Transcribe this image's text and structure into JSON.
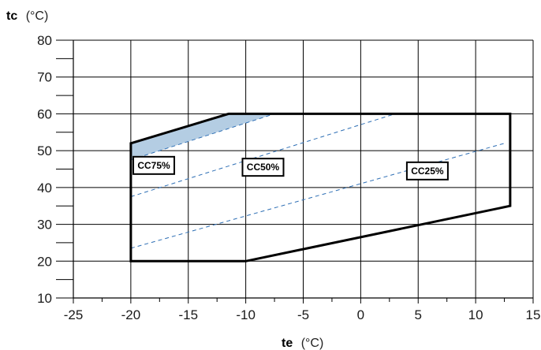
{
  "chart_data": {
    "type": "line",
    "x_axis": {
      "var": "te",
      "unit": "(°C)",
      "range": [
        -25,
        15
      ],
      "ticks": [
        -25,
        -20,
        -15,
        -10,
        -5,
        0,
        5,
        10,
        15
      ],
      "tick_labels": [
        "-25",
        "-20",
        "-15",
        "-10",
        "-5",
        "0",
        "5",
        "10",
        "15"
      ],
      "minor_ticks": [
        -22.5,
        -17.5,
        -12.5,
        -7.5,
        -2.5,
        2.5,
        7.5,
        12.5
      ]
    },
    "y_axis": {
      "var": "tc",
      "unit": "(°C)",
      "range": [
        10,
        80
      ],
      "ticks": [
        10,
        20,
        30,
        40,
        50,
        60,
        70,
        80
      ],
      "tick_labels": [
        "10",
        "20",
        "30",
        "40",
        "50",
        "60",
        "70",
        "80"
      ],
      "minor_ticks": [
        15,
        25,
        35,
        45,
        55,
        65,
        75
      ]
    },
    "grid": true,
    "envelope": {
      "points": [
        [
          -20,
          52
        ],
        [
          -11.5,
          60
        ],
        [
          13,
          60
        ],
        [
          13,
          35
        ],
        [
          -10,
          20
        ],
        [
          -20,
          20
        ]
      ]
    },
    "shaded_region": {
      "color": "#b4cde3",
      "points": [
        [
          -20,
          52
        ],
        [
          -11.5,
          60
        ],
        [
          -7.5,
          60
        ],
        [
          -20,
          47.5
        ]
      ]
    },
    "capacity_lines": [
      {
        "points": [
          [
            -20,
            47.5
          ],
          [
            -7.5,
            60
          ]
        ]
      },
      {
        "points": [
          [
            -20,
            37.5
          ],
          [
            3,
            60
          ]
        ]
      },
      {
        "points": [
          [
            -20,
            23.5
          ],
          [
            12.5,
            52
          ]
        ]
      }
    ],
    "annotations": [
      {
        "text": "CC75%",
        "x": -18,
        "y": 46
      },
      {
        "text": "CC50%",
        "x": -8.5,
        "y": 45.5
      },
      {
        "text": "CC25%",
        "x": 5.8,
        "y": 44.5
      }
    ],
    "colors": {
      "envelope": "#000000",
      "grid": "#000000",
      "capacity_line": "#2e6fb5",
      "shaded": "#b4cde3"
    }
  }
}
